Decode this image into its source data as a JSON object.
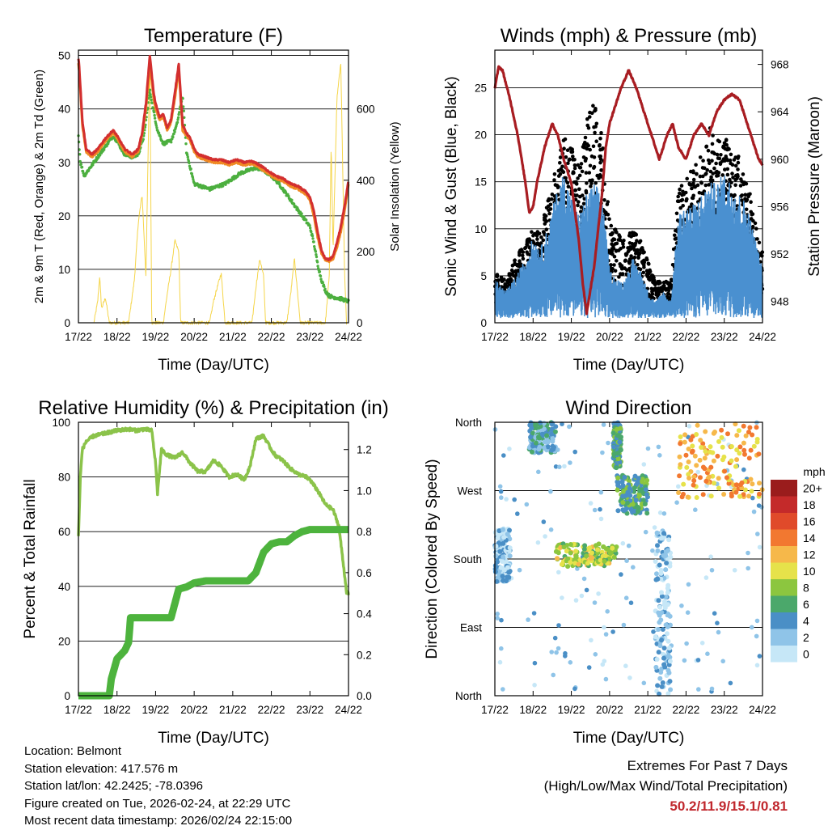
{
  "chart_data": [
    {
      "type": "line",
      "title": "Temperature (F)",
      "xlabel": "Time (Day/UTC)",
      "ylabel": "2m & 9m T (Red, Orange) & 2m Td (Green)",
      "y2label": "Solar Insolation (Yellow)",
      "xticks": [
        "17/22",
        "18/22",
        "19/22",
        "20/22",
        "21/22",
        "22/22",
        "23/22",
        "24/22"
      ],
      "xlim": [
        0,
        7
      ],
      "ylim": [
        0,
        51
      ],
      "yticks": [
        0,
        10,
        20,
        30,
        40,
        50
      ],
      "y2lim": [
        0,
        765
      ],
      "y2ticks": [
        0,
        200,
        400,
        600
      ],
      "series": [
        {
          "name": "9m T",
          "color": "#f08a24",
          "x": [
            0,
            0.02,
            0.1,
            0.2,
            0.35,
            0.5,
            0.7,
            0.9,
            1.0,
            1.2,
            1.4,
            1.55,
            1.65,
            1.75,
            1.85,
            1.95,
            2.0,
            2.1,
            2.2,
            2.3,
            2.4,
            2.5,
            2.6,
            2.7,
            2.8,
            2.9,
            2.95,
            3.0,
            3.1,
            3.3,
            3.5,
            3.7,
            3.9,
            4.1,
            4.3,
            4.5,
            4.7,
            4.9,
            5.1,
            5.3,
            5.5,
            5.7,
            5.9,
            6.0,
            6.1,
            6.2,
            6.3,
            6.4,
            6.5,
            6.6,
            6.7,
            6.8,
            6.9,
            7.0
          ],
          "values": [
            48.5,
            47,
            37,
            32,
            31,
            32,
            34,
            35.5,
            34.5,
            32,
            31,
            32,
            35,
            40,
            48.5,
            42,
            40,
            38,
            38.5,
            36,
            37.5,
            42,
            47.5,
            36,
            35,
            34,
            33,
            32,
            31,
            30.5,
            30,
            30,
            29.5,
            30,
            29.5,
            29.8,
            29,
            28,
            27,
            26.5,
            25.5,
            25,
            24,
            23,
            20,
            16,
            13,
            11.8,
            11.5,
            12,
            14,
            17,
            21,
            26
          ]
        },
        {
          "name": "2m T",
          "color": "#d32f2f",
          "x": [
            0,
            0.02,
            0.1,
            0.2,
            0.35,
            0.5,
            0.7,
            0.9,
            1.0,
            1.2,
            1.4,
            1.55,
            1.65,
            1.75,
            1.85,
            1.95,
            2.0,
            2.1,
            2.2,
            2.3,
            2.4,
            2.5,
            2.6,
            2.7,
            2.8,
            2.9,
            2.95,
            3.0,
            3.1,
            3.3,
            3.5,
            3.7,
            3.9,
            4.1,
            4.3,
            4.5,
            4.7,
            4.9,
            5.1,
            5.3,
            5.5,
            5.7,
            5.9,
            6.0,
            6.1,
            6.2,
            6.3,
            6.4,
            6.5,
            6.6,
            6.7,
            6.8,
            6.9,
            7.0
          ],
          "values": [
            49.5,
            48,
            38,
            32.5,
            31.5,
            32.5,
            34.5,
            36,
            35,
            32.5,
            31.5,
            32.5,
            35.5,
            41,
            50,
            43,
            41,
            38.5,
            39,
            36.5,
            38,
            43,
            48.5,
            37,
            35.5,
            34.5,
            33.5,
            32.5,
            31.5,
            31,
            30.5,
            30.5,
            30,
            30.5,
            30,
            30.2,
            29.5,
            28.5,
            27.5,
            27,
            26,
            25.5,
            24.5,
            23.5,
            21,
            17,
            13.5,
            12,
            11.8,
            12.5,
            15,
            18,
            22,
            26.5
          ]
        },
        {
          "name": "2m Td",
          "color": "#4caf3f",
          "x": [
            0,
            0.05,
            0.15,
            0.3,
            0.5,
            0.7,
            0.9,
            1.0,
            1.2,
            1.4,
            1.55,
            1.7,
            1.85,
            1.95,
            2.05,
            2.2,
            2.4,
            2.55,
            2.7,
            2.8,
            2.9,
            3.0,
            3.2,
            3.4,
            3.6,
            3.8,
            4.0,
            4.2,
            4.4,
            4.6,
            4.8,
            5.0,
            5.2,
            5.4,
            5.6,
            5.8,
            6.0,
            6.1,
            6.2,
            6.3,
            6.4,
            6.5,
            6.6,
            6.8,
            7.0
          ],
          "values": [
            35,
            30,
            27.5,
            29,
            31,
            33,
            35,
            34,
            31.5,
            31,
            31.5,
            35,
            43.5,
            39.5,
            36,
            33.5,
            34,
            37,
            42.5,
            32,
            29,
            26,
            25.5,
            25,
            25.5,
            26,
            27,
            28,
            28.5,
            29,
            28.5,
            27.5,
            26,
            24,
            22,
            20,
            18,
            15,
            11,
            8,
            6,
            5,
            4.8,
            4.5,
            4
          ]
        },
        {
          "name": "Solar Insolation",
          "axis": "y2",
          "color": "#f5d549",
          "x": [
            0.4,
            0.5,
            0.55,
            0.6,
            0.7,
            0.8,
            1.3,
            1.45,
            1.55,
            1.65,
            1.75,
            1.85,
            1.9,
            2.2,
            2.3,
            2.4,
            2.5,
            2.6,
            2.65,
            3.4,
            3.5,
            3.6,
            3.7,
            3.8,
            4.5,
            4.6,
            4.7,
            4.8,
            4.85,
            5.4,
            5.5,
            5.6,
            5.7,
            5.75,
            6.4,
            6.5,
            6.55,
            6.6,
            6.7,
            6.8,
            6.9,
            6.95
          ],
          "values": [
            0,
            60,
            130,
            40,
            70,
            0,
            0,
            120,
            280,
            360,
            130,
            750,
            0,
            0,
            80,
            150,
            230,
            200,
            0,
            0,
            60,
            100,
            140,
            0,
            0,
            100,
            180,
            130,
            0,
            0,
            80,
            180,
            60,
            0,
            0,
            130,
            500,
            200,
            630,
            730,
            130,
            0
          ]
        }
      ]
    },
    {
      "type": "line",
      "title": "Winds (mph) & Pressure (mb)",
      "xlabel": "Time (Day/UTC)",
      "ylabel": "Sonic Wind & Gust (Blue, Black)",
      "y2label": "Station Pressure (Maroon)",
      "xticks": [
        "17/22",
        "18/22",
        "19/22",
        "20/22",
        "21/22",
        "22/22",
        "23/22",
        "24/22"
      ],
      "xlim": [
        0,
        7
      ],
      "ylim": [
        0,
        29
      ],
      "yticks": [
        0,
        5,
        10,
        15,
        20,
        25
      ],
      "y2lim": [
        946.2,
        969.2
      ],
      "y2ticks": [
        948,
        952,
        956,
        960,
        964,
        968
      ],
      "series": [
        {
          "name": "Station Pressure",
          "axis": "y2",
          "color": "#a81d22",
          "x": [
            0,
            0.1,
            0.2,
            0.4,
            0.6,
            0.8,
            0.9,
            1.0,
            1.1,
            1.3,
            1.5,
            1.65,
            1.8,
            2.0,
            2.2,
            2.3,
            2.4,
            2.6,
            2.8,
            2.9,
            3.0,
            3.1,
            3.3,
            3.5,
            3.7,
            3.9,
            4.1,
            4.3,
            4.5,
            4.65,
            4.8,
            5.0,
            5.2,
            5.4,
            5.6,
            5.8,
            6.0,
            6.2,
            6.4,
            6.6,
            6.8,
            6.9,
            7.0
          ],
          "values": [
            966,
            967.8,
            967.5,
            965,
            962,
            958,
            955.5,
            956,
            958,
            961,
            963,
            962,
            960,
            958,
            953,
            949.5,
            947,
            951,
            957,
            961,
            963,
            964,
            966,
            967.5,
            966,
            964,
            962,
            960,
            962,
            963,
            961,
            960,
            962,
            963,
            962,
            964,
            965,
            965.5,
            965,
            963,
            961,
            960,
            959.5
          ]
        },
        {
          "name": "Sonic Wind",
          "color": "#4a90d0",
          "style": "noisy band",
          "envelope_low": 0.5,
          "x": [
            0,
            0.3,
            0.5,
            0.8,
            1.0,
            1.2,
            1.4,
            1.6,
            1.8,
            2.0,
            2.2,
            2.4,
            2.6,
            2.8,
            3.0,
            3.2,
            3.4,
            3.6,
            3.8,
            4.0,
            4.2,
            4.4,
            4.6,
            4.8,
            5.0,
            5.2,
            5.4,
            5.6,
            5.8,
            6.0,
            6.2,
            6.4,
            6.6,
            6.8,
            7.0
          ],
          "values": [
            4,
            3,
            4,
            6,
            8,
            7,
            9,
            12,
            14,
            12,
            10,
            12,
            13,
            12,
            5,
            4,
            4,
            6,
            5,
            3,
            2,
            3,
            2,
            10,
            11,
            11,
            12,
            13,
            13,
            14,
            13,
            12,
            11,
            8,
            5
          ]
        },
        {
          "name": "Gust",
          "color": "#000000",
          "style": "scatter",
          "x": [
            0,
            0.3,
            0.5,
            0.8,
            1.0,
            1.2,
            1.4,
            1.6,
            1.8,
            2.0,
            2.2,
            2.4,
            2.6,
            2.8,
            3.0,
            3.2,
            3.4,
            3.6,
            3.8,
            4.0,
            4.2,
            4.4,
            4.6,
            4.8,
            5.0,
            5.2,
            5.4,
            5.6,
            5.8,
            6.0,
            6.2,
            6.4,
            6.6,
            6.8,
            7.0
          ],
          "values": [
            5,
            4,
            6,
            8,
            9,
            9,
            12,
            15,
            18,
            17,
            16,
            20,
            22,
            18,
            10,
            9,
            8,
            9,
            8,
            6,
            4,
            4,
            4,
            13,
            14,
            15,
            18,
            19,
            18,
            18,
            17,
            16,
            14,
            10,
            7
          ]
        }
      ]
    },
    {
      "type": "line",
      "title": "Relative Humidity (%) & Precipitation (in)",
      "xlabel": "Time (Day/UTC)",
      "ylabel": "Percent & Total Rainfall",
      "xticks": [
        "17/22",
        "18/22",
        "19/22",
        "20/22",
        "21/22",
        "22/22",
        "23/22",
        "24/22"
      ],
      "xlim": [
        0,
        7
      ],
      "ylim": [
        0,
        100
      ],
      "yticks": [
        0,
        20,
        40,
        60,
        80,
        100
      ],
      "y2lim": [
        0,
        1.333
      ],
      "y2ticks": [
        "0.0",
        "0.2",
        "0.4",
        "0.6",
        "0.8",
        "1.0",
        "1.2"
      ],
      "series": [
        {
          "name": "Relative Humidity",
          "color": "#8bc34a",
          "x": [
            0,
            0.05,
            0.1,
            0.2,
            0.4,
            0.7,
            1.0,
            1.3,
            1.5,
            1.7,
            1.9,
            2.0,
            2.05,
            2.15,
            2.3,
            2.5,
            2.7,
            2.9,
            3.1,
            3.3,
            3.5,
            3.7,
            3.9,
            4.1,
            4.3,
            4.45,
            4.6,
            4.8,
            5.0,
            5.1,
            5.3,
            5.5,
            5.7,
            5.9,
            6.0,
            6.2,
            6.4,
            6.6,
            6.75,
            6.85,
            6.95,
            7.0
          ],
          "values": [
            58,
            80,
            90,
            93,
            95,
            96,
            97,
            97.5,
            97,
            97.5,
            97,
            85,
            74,
            90,
            88,
            87,
            89,
            85,
            82,
            82,
            86,
            84,
            80,
            81,
            79,
            84,
            94,
            95,
            90,
            88,
            86,
            83,
            81,
            80,
            79,
            75,
            70,
            68,
            62,
            50,
            38,
            37
          ]
        },
        {
          "name": "Total Precipitation",
          "axis": "y2",
          "color": "#4db33d",
          "x": [
            0,
            0.5,
            0.8,
            0.85,
            1.0,
            1.2,
            1.3,
            1.35,
            1.5,
            1.8,
            2.0,
            2.4,
            2.5,
            2.6,
            2.8,
            3.0,
            3.3,
            3.4,
            3.6,
            3.8,
            4.0,
            4.4,
            4.6,
            4.7,
            4.8,
            5.0,
            5.2,
            5.4,
            5.6,
            5.8,
            6.0,
            6.2,
            6.4,
            6.6,
            6.8,
            7.0
          ],
          "values": [
            0,
            0,
            0,
            0.08,
            0.18,
            0.22,
            0.26,
            0.38,
            0.38,
            0.38,
            0.38,
            0.38,
            0.45,
            0.52,
            0.53,
            0.55,
            0.56,
            0.56,
            0.56,
            0.56,
            0.56,
            0.56,
            0.6,
            0.65,
            0.7,
            0.74,
            0.75,
            0.75,
            0.78,
            0.8,
            0.81,
            0.81,
            0.81,
            0.81,
            0.81,
            0.81
          ]
        }
      ]
    },
    {
      "type": "scatter",
      "title": "Wind Direction",
      "xlabel": "Time (Day/UTC)",
      "ylabel": "Direction (Colored By Speed)",
      "xticks": [
        "17/22",
        "18/22",
        "19/22",
        "20/22",
        "21/22",
        "22/22",
        "23/22",
        "24/22"
      ],
      "xlim": [
        0,
        7
      ],
      "ylim": [
        0,
        360
      ],
      "yticks": [
        {
          "v": 0,
          "label": "North"
        },
        {
          "v": 90,
          "label": "East"
        },
        {
          "v": 180,
          "label": "South"
        },
        {
          "v": 270,
          "label": "West"
        },
        {
          "v": 360,
          "label": "North"
        }
      ],
      "legend": {
        "title": "mph",
        "labels": [
          "0",
          "2",
          "4",
          "6",
          "8",
          "10",
          "12",
          "14",
          "16",
          "18",
          "20+"
        ],
        "colors": [
          "#c6e7f7",
          "#8fc4e8",
          "#4a8fc6",
          "#4ba86b",
          "#8cc63f",
          "#e6e24a",
          "#f6b84a",
          "#f27830",
          "#e04a2a",
          "#c42a2a",
          "#9a1c1c"
        ]
      },
      "clusters": [
        {
          "x_range": [
            0,
            0.4
          ],
          "dir_range": [
            150,
            220
          ],
          "speed": 2
        },
        {
          "x_range": [
            0.9,
            1.6
          ],
          "dir_range": [
            320,
            360
          ],
          "speed": 4
        },
        {
          "x_range": [
            1.6,
            3.2
          ],
          "dir_range": [
            170,
            200
          ],
          "speed": 9
        },
        {
          "x_range": [
            3.1,
            3.3
          ],
          "dir_range": [
            300,
            360
          ],
          "speed": 6
        },
        {
          "x_range": [
            3.2,
            4.0
          ],
          "dir_range": [
            240,
            290
          ],
          "speed": 6
        },
        {
          "x_range": [
            4.2,
            4.6
          ],
          "dir_range": [
            0,
            220
          ],
          "speed": 2
        },
        {
          "x_range": [
            4.8,
            7.0
          ],
          "dir_range": [
            260,
            360
          ],
          "speed": 12
        }
      ]
    }
  ],
  "info": {
    "location": "Location: Belmont",
    "elevation": "Station elevation: 417.576 m",
    "latlon": "Station lat/lon: 42.2425; -78.0396",
    "created": "Figure created on Tue, 2026-02-24, at 22:29 UTC",
    "recent": "Most recent data timestamp: 2026/02/24 22:15:00"
  },
  "extremes": {
    "title": "Extremes For Past 7 Days",
    "subtitle": "(High/Low/Max Wind/Total Precipitation)",
    "values": "50.2/11.9/15.1/0.81"
  }
}
